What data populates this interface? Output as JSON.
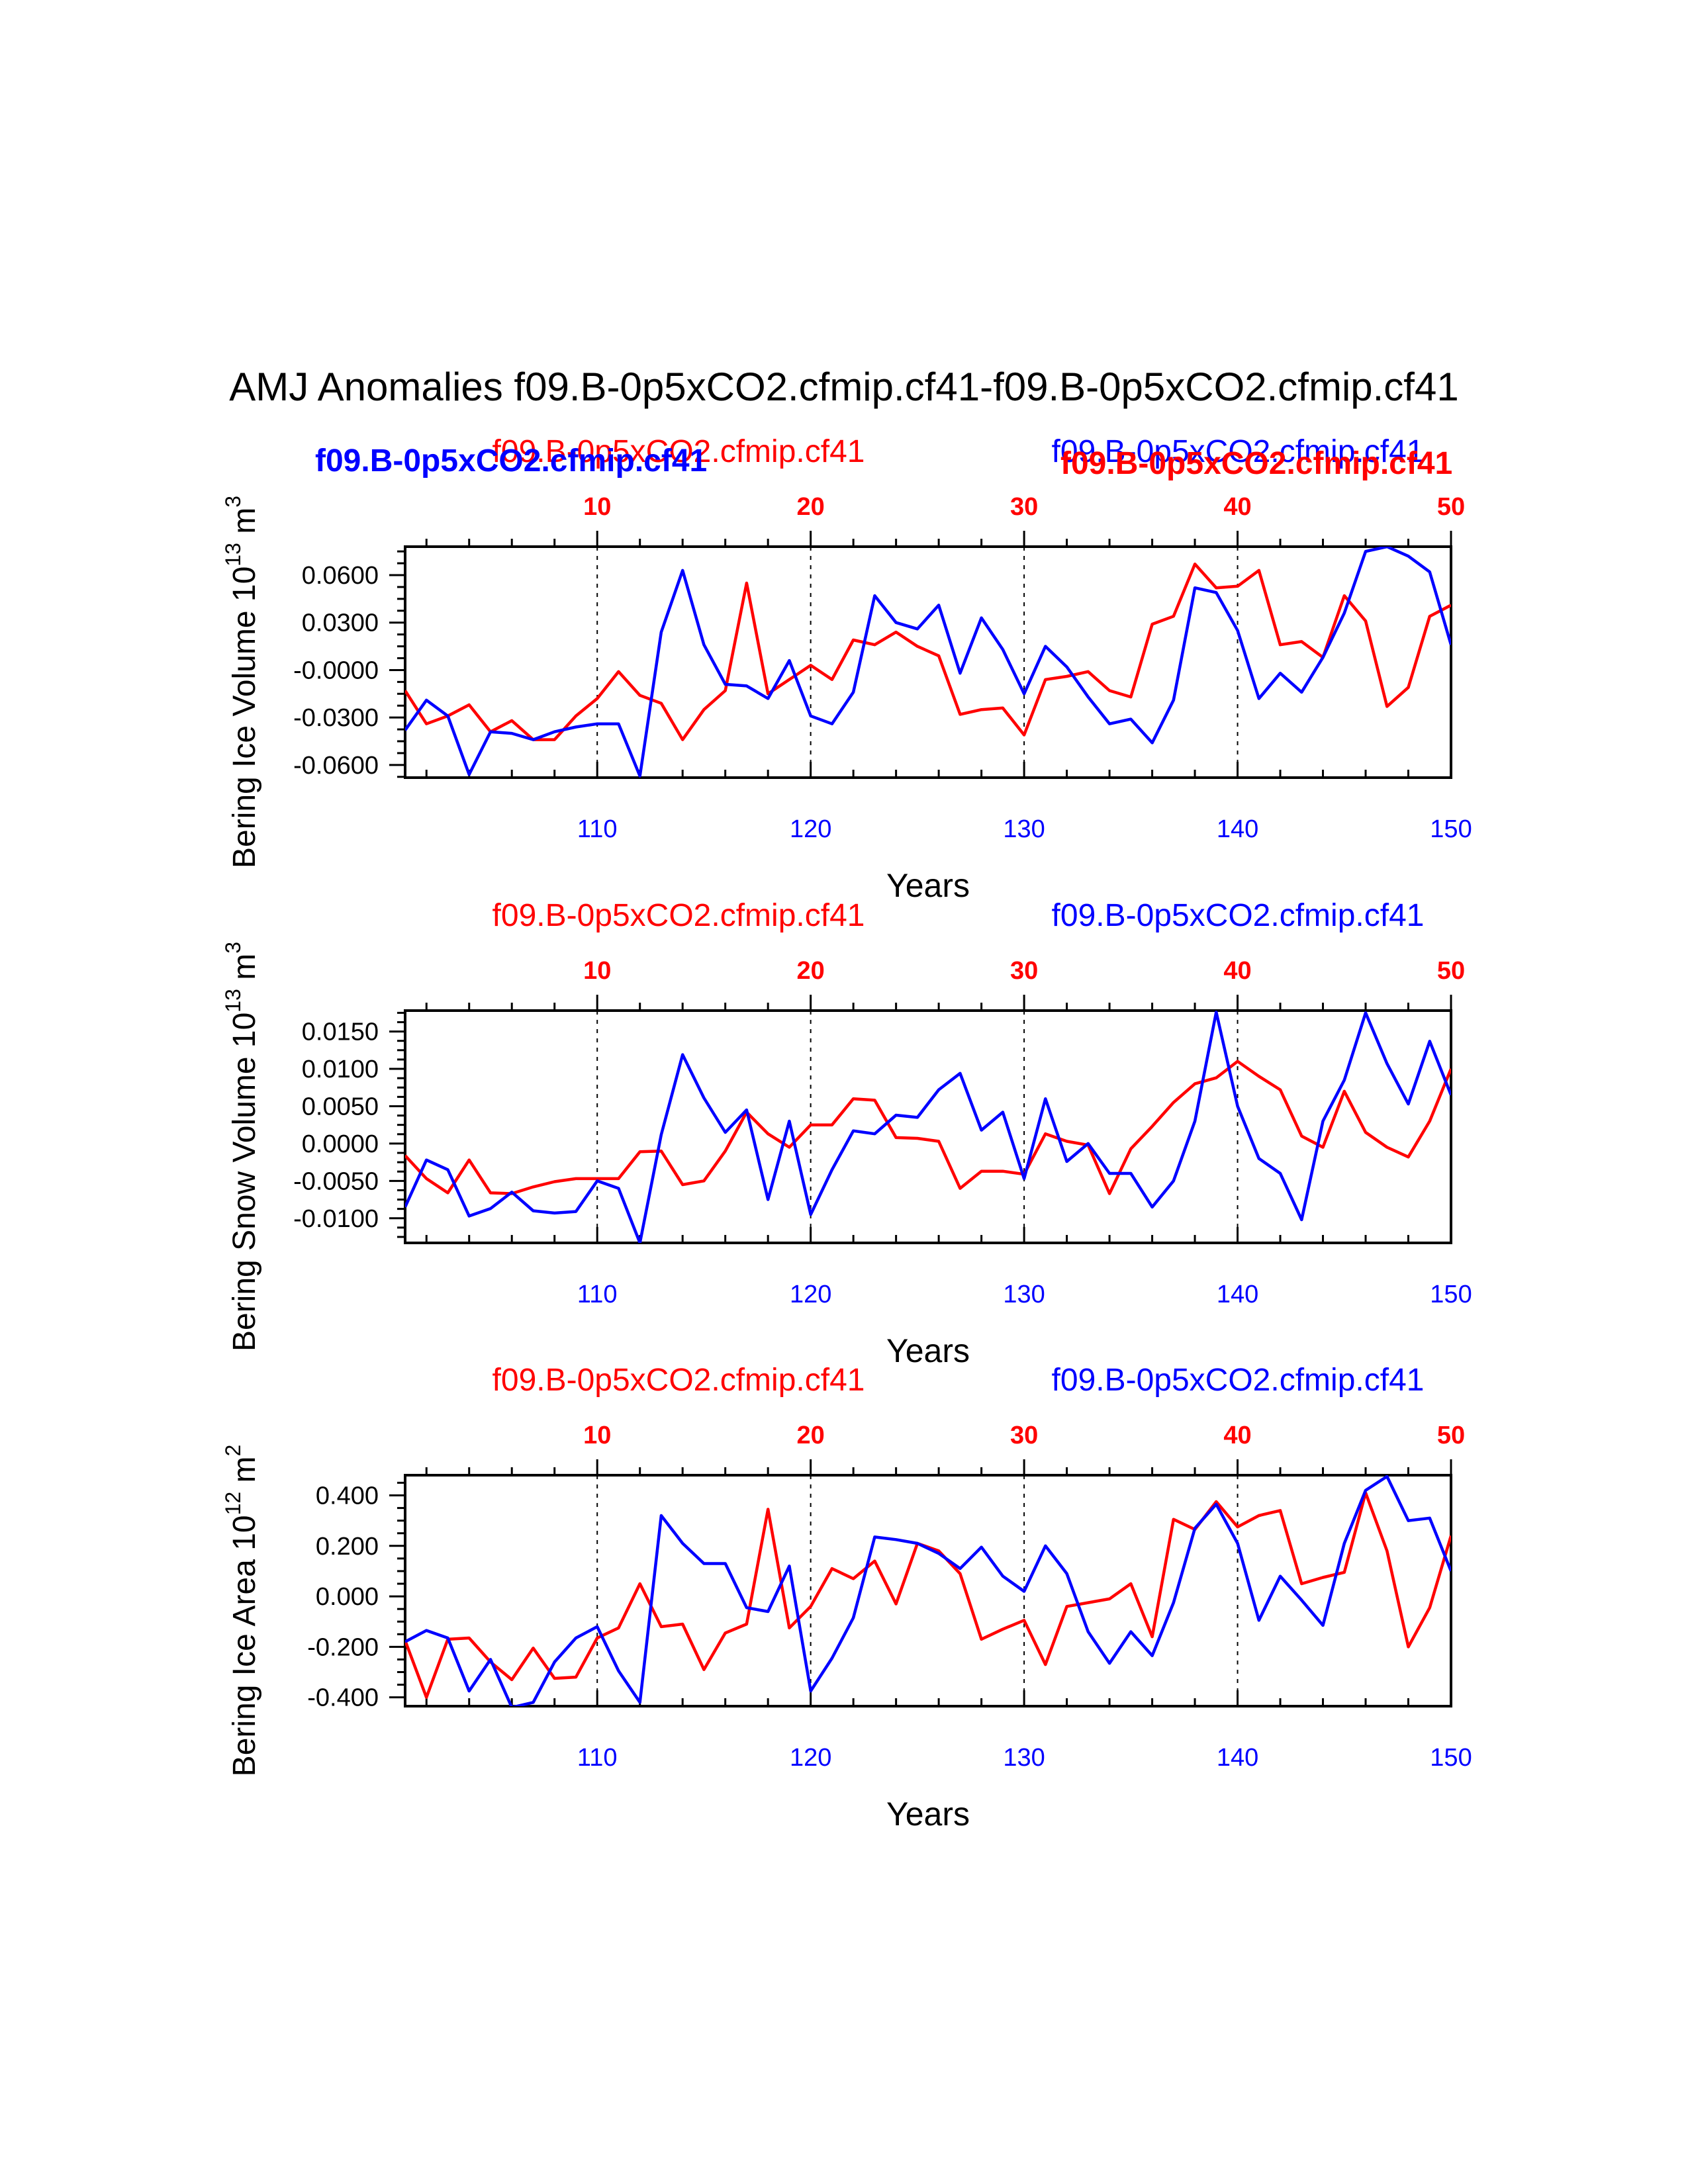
{
  "title": "AMJ Anomalies f09.B-0p5xCO2.cfmip.cf41-f09.B-0p5xCO2.cfmip.cf41",
  "colors": {
    "series_red": "#ff0000",
    "series_blue": "#0000ff",
    "axis": "#000000"
  },
  "legend_overlay": {
    "blue_bold": "f09.B-0p5xCO2.cfmip.cf41",
    "red_bold": "f09.B-0p5xCO2.cfmip.cf41"
  },
  "chart_data": [
    {
      "type": "line",
      "ylabel_main": "Bering Ice Volume 10",
      "ylabel_exp": "13",
      "ylabel_unit": " m",
      "ylabel_unit_exp": "3",
      "xlabel": "Years",
      "top_label_red": "f09.B-0p5xCO2.cfmip.cf41",
      "top_label_blue": "f09.B-0p5xCO2.cfmip.cf41",
      "xlim_bottom": [
        101,
        150
      ],
      "xticks_bottom": [
        "110",
        "120",
        "130",
        "140",
        "150"
      ],
      "xticks_top": [
        "10",
        "20",
        "30",
        "40",
        "50"
      ],
      "ylim": [
        -0.068,
        0.078
      ],
      "yticks": [
        "0.0600",
        "0.0300",
        "-0.0000",
        "-0.0300",
        "-0.0600"
      ],
      "ytick_values": [
        0.06,
        0.03,
        0,
        -0.03,
        -0.06
      ],
      "series": [
        {
          "name": "red",
          "x_start": 101,
          "values": [
            -0.013,
            -0.034,
            -0.029,
            -0.022,
            -0.039,
            -0.032,
            -0.044,
            -0.044,
            -0.029,
            -0.018,
            -0.001,
            -0.016,
            -0.021,
            -0.044,
            -0.025,
            -0.013,
            0.055,
            -0.015,
            -0.006,
            0.003,
            -0.006,
            0.019,
            0.016,
            0.024,
            0.015,
            0.009,
            -0.028,
            -0.025,
            -0.024,
            -0.041,
            -0.006,
            -0.004,
            -0.001,
            -0.013,
            -0.017,
            0.029,
            0.034,
            0.067,
            0.052,
            0.053,
            0.063,
            0.016,
            0.018,
            0.008,
            0.047,
            0.031,
            -0.023,
            -0.011,
            0.034,
            0.041
          ]
        },
        {
          "name": "blue",
          "x_start": 101,
          "values": [
            -0.038,
            -0.019,
            -0.029,
            -0.066,
            -0.039,
            -0.04,
            -0.044,
            -0.039,
            -0.036,
            -0.034,
            -0.034,
            -0.067,
            0.024,
            0.063,
            0.016,
            -0.009,
            -0.01,
            -0.018,
            0.006,
            -0.029,
            -0.034,
            -0.014,
            0.047,
            0.03,
            0.026,
            0.041,
            -0.002,
            0.033,
            0.013,
            -0.015,
            0.015,
            0.002,
            -0.017,
            -0.034,
            -0.031,
            -0.046,
            -0.019,
            0.052,
            0.049,
            0.025,
            -0.018,
            -0.002,
            -0.014,
            0.008,
            0.036,
            0.075,
            0.078,
            0.072,
            0.062,
            0.016
          ]
        }
      ]
    },
    {
      "type": "line",
      "ylabel_main": "Bering Snow Volume 10",
      "ylabel_exp": "13",
      "ylabel_unit": " m",
      "ylabel_unit_exp": "3",
      "xlabel": "Years",
      "top_label_red": "f09.B-0p5xCO2.cfmip.cf41",
      "top_label_blue": "f09.B-0p5xCO2.cfmip.cf41",
      "xlim_bottom": [
        101,
        150
      ],
      "xticks_bottom": [
        "110",
        "120",
        "130",
        "140",
        "150"
      ],
      "xticks_top": [
        "10",
        "20",
        "30",
        "40",
        "50"
      ],
      "ylim": [
        -0.0133,
        0.0178
      ],
      "yticks": [
        "0.0150",
        "0.0100",
        "0.0050",
        "0.0000",
        "-0.0050",
        "-0.0100"
      ],
      "ytick_values": [
        0.015,
        0.01,
        0.005,
        0,
        -0.005,
        -0.01
      ],
      "series": [
        {
          "name": "red",
          "x_start": 101,
          "values": [
            -0.0016,
            -0.0047,
            -0.0066,
            -0.0022,
            -0.0066,
            -0.0067,
            -0.0058,
            -0.0051,
            -0.0047,
            -0.0047,
            -0.0047,
            -0.0011,
            -0.001,
            -0.0055,
            -0.005,
            -0.001,
            0.0042,
            0.0013,
            -0.0005,
            0.0025,
            0.0025,
            0.006,
            0.0058,
            0.0008,
            0.0007,
            0.0003,
            -0.006,
            -0.0037,
            -0.0037,
            -0.0041,
            0.0013,
            0.0003,
            -0.0002,
            -0.0067,
            -0.0007,
            0.0023,
            0.0055,
            0.008,
            0.0088,
            0.011,
            0.009,
            0.0072,
            0.001,
            -0.0005,
            0.007,
            0.0015,
            -0.0005,
            -0.0018,
            0.003,
            0.01
          ]
        },
        {
          "name": "blue",
          "x_start": 101,
          "values": [
            -0.0085,
            -0.0022,
            -0.0035,
            -0.0097,
            -0.0087,
            -0.0065,
            -0.009,
            -0.0093,
            -0.0091,
            -0.005,
            -0.006,
            -0.0133,
            0.0012,
            0.0119,
            0.0061,
            0.0015,
            0.0045,
            -0.0075,
            0.003,
            -0.0095,
            -0.0035,
            0.0017,
            0.0013,
            0.0038,
            0.0035,
            0.0072,
            0.0094,
            0.0018,
            0.0042,
            -0.0047,
            0.006,
            -0.0024,
            0.0,
            -0.004,
            -0.004,
            -0.0085,
            -0.005,
            0.003,
            0.0176,
            0.005,
            -0.002,
            -0.004,
            -0.0102,
            0.003,
            0.0085,
            0.0175,
            0.0107,
            0.0053,
            0.0137,
            0.0065
          ]
        }
      ]
    },
    {
      "type": "line",
      "ylabel_main": "Bering Ice Area 10",
      "ylabel_exp": "12",
      "ylabel_unit": " m",
      "ylabel_unit_exp": "2",
      "xlabel": "Years",
      "top_label_red": "f09.B-0p5xCO2.cfmip.cf41",
      "top_label_blue": "f09.B-0p5xCO2.cfmip.cf41",
      "xlim_bottom": [
        101,
        150
      ],
      "xticks_bottom": [
        "110",
        "120",
        "130",
        "140",
        "150"
      ],
      "xticks_top": [
        "10",
        "20",
        "30",
        "40",
        "50"
      ],
      "ylim": [
        -0.435,
        0.48
      ],
      "yticks": [
        "0.400",
        "0.200",
        "0.000",
        "-0.200",
        "-0.400"
      ],
      "ytick_values": [
        0.4,
        0.2,
        0,
        -0.2,
        -0.4
      ],
      "series": [
        {
          "name": "red",
          "x_start": 101,
          "values": [
            -0.175,
            -0.4,
            -0.17,
            -0.165,
            -0.26,
            -0.33,
            -0.205,
            -0.325,
            -0.32,
            -0.165,
            -0.125,
            0.05,
            -0.12,
            -0.11,
            -0.29,
            -0.145,
            -0.11,
            0.345,
            -0.125,
            -0.04,
            0.11,
            0.07,
            0.14,
            -0.03,
            0.21,
            0.18,
            0.09,
            -0.17,
            -0.13,
            -0.095,
            -0.27,
            -0.04,
            -0.025,
            -0.01,
            0.05,
            -0.16,
            0.305,
            0.265,
            0.375,
            0.275,
            0.32,
            0.34,
            0.05,
            0.075,
            0.095,
            0.41,
            0.18,
            -0.2,
            -0.045,
            0.24
          ]
        },
        {
          "name": "blue",
          "x_start": 101,
          "values": [
            -0.18,
            -0.135,
            -0.165,
            -0.375,
            -0.25,
            -0.44,
            -0.42,
            -0.26,
            -0.165,
            -0.12,
            -0.295,
            -0.42,
            0.32,
            0.21,
            0.13,
            0.13,
            -0.045,
            -0.06,
            0.12,
            -0.375,
            -0.245,
            -0.085,
            0.235,
            0.225,
            0.21,
            0.17,
            0.11,
            0.195,
            0.08,
            0.02,
            0.2,
            0.09,
            -0.14,
            -0.265,
            -0.14,
            -0.235,
            -0.025,
            0.27,
            0.365,
            0.21,
            -0.095,
            0.08,
            -0.015,
            -0.115,
            0.21,
            0.42,
            0.475,
            0.3,
            0.31,
            0.1
          ]
        }
      ]
    }
  ]
}
